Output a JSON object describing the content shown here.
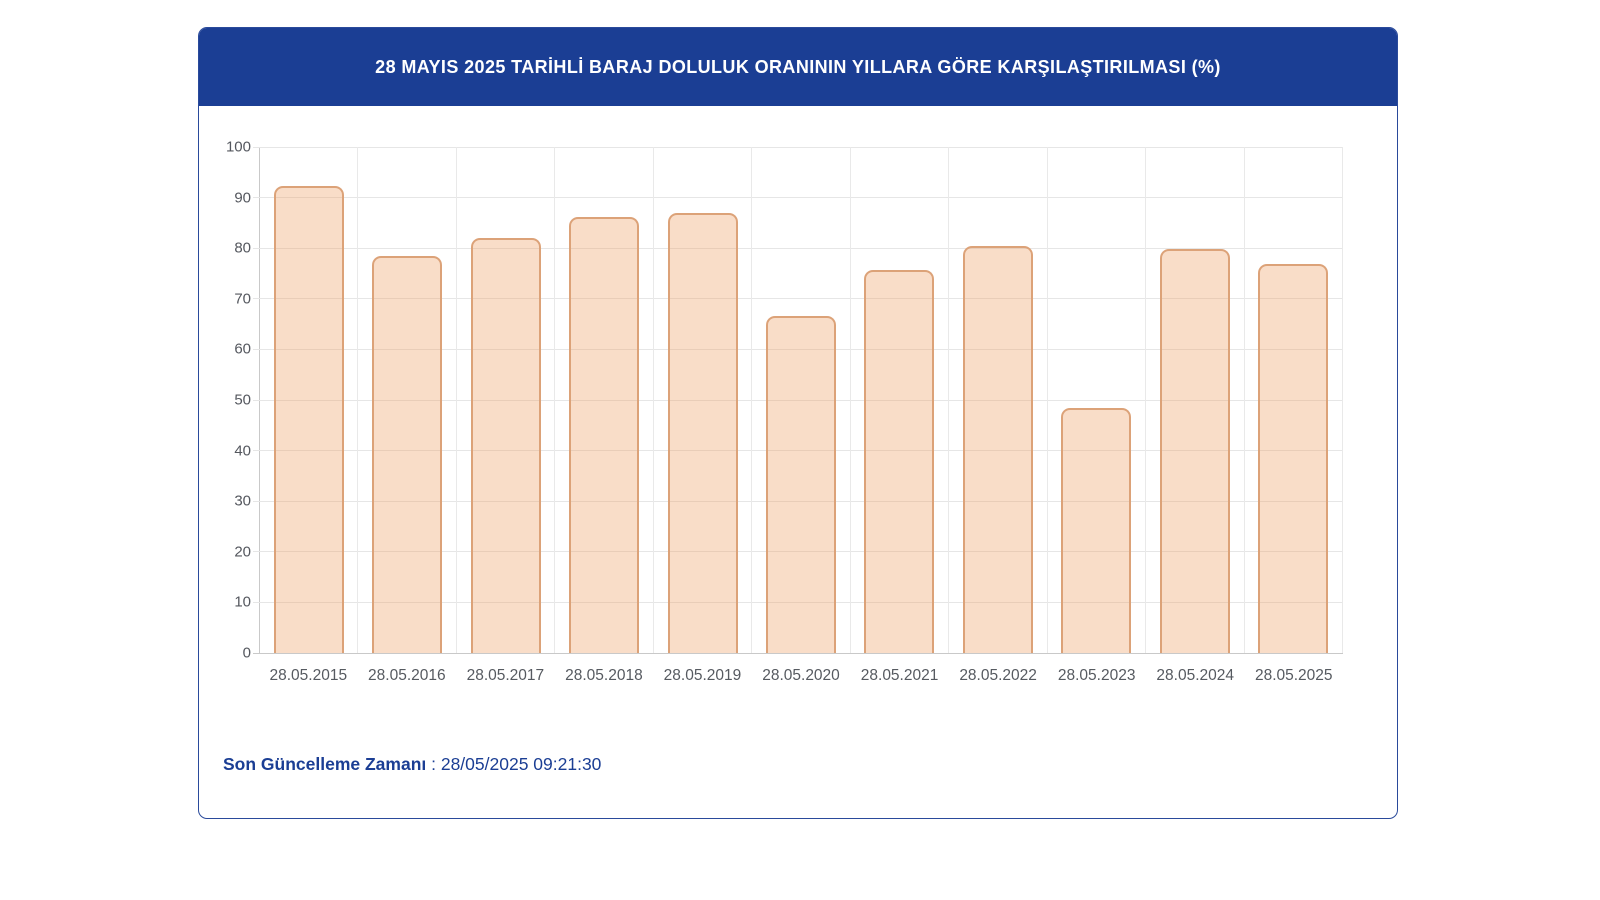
{
  "card": {
    "title": "28 MAYIS 2025 TARİHLİ BARAJ DOLULUK ORANININ YILLARA GÖRE KARŞILAŞTIRILMASI (%)",
    "footer": {
      "label": "Son Güncelleme Zamanı",
      "separator": " : ",
      "value": "28/05/2025 09:21:30"
    }
  },
  "colors": {
    "header_bg": "#1b3e94",
    "title_text": "#ffffff",
    "card_border": "#2a4a9b",
    "bar_fill": "rgba(238,166,110,0.38)",
    "bar_border": "#dca278",
    "gridline": "#e6e6e6",
    "axis_line": "#c9c9c9",
    "tick_text": "#54575e",
    "footer_text": "#1b3e94"
  },
  "chart_data": {
    "type": "bar",
    "title": "28 MAYIS 2025 TARİHLİ BARAJ DOLULUK ORANININ YILLARA GÖRE KARŞILAŞTIRILMASI (%)",
    "categories": [
      "28.05.2015",
      "28.05.2016",
      "28.05.2017",
      "28.05.2018",
      "28.05.2019",
      "28.05.2020",
      "28.05.2021",
      "28.05.2022",
      "28.05.2023",
      "28.05.2024",
      "28.05.2025"
    ],
    "values": [
      92.3,
      78.5,
      82.0,
      86.2,
      86.9,
      66.7,
      75.7,
      80.5,
      48.5,
      79.9,
      76.8
    ],
    "xlabel": "",
    "ylabel": "",
    "ylim": [
      0,
      100
    ],
    "ytick_step": 10,
    "grid": true,
    "legend": false
  }
}
